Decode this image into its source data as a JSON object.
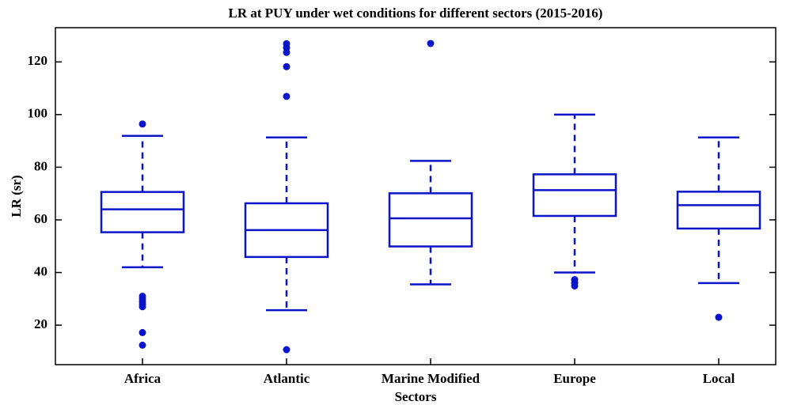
{
  "chart_data": {
    "type": "box",
    "title": "LR at PUY under wet conditions for different sectors (2015-2016)",
    "x_label": "Sectors",
    "y_label": "LR (sr)",
    "categories": [
      "Africa",
      "Atlantic",
      "Marine Modified",
      "Europe",
      "Local"
    ],
    "color": "#0a14c8",
    "whisker_low": [
      42,
      25.7,
      35.5,
      40,
      36
    ],
    "q1": [
      55.3,
      45.9,
      49.9,
      61.5,
      56.7
    ],
    "median": [
      64,
      56.1,
      60.6,
      71.3,
      65.6
    ],
    "q3": [
      70.6,
      66.3,
      70.1,
      77.3,
      70.7
    ],
    "whisker_high": [
      91.9,
      91.3,
      82.4,
      100,
      91.3
    ],
    "outliers": [
      [
        96.4,
        31,
        30,
        29,
        28,
        27,
        17.2,
        12.4
      ],
      [
        126.9,
        125.4,
        123.6,
        118.2,
        106.9,
        10.7
      ],
      [
        127
      ],
      [
        37.3,
        36.1,
        34.9
      ],
      [
        23
      ]
    ],
    "ylim": [
      5,
      133
    ],
    "yticks": [
      20,
      40,
      60,
      80,
      100,
      120
    ],
    "grid": false
  }
}
